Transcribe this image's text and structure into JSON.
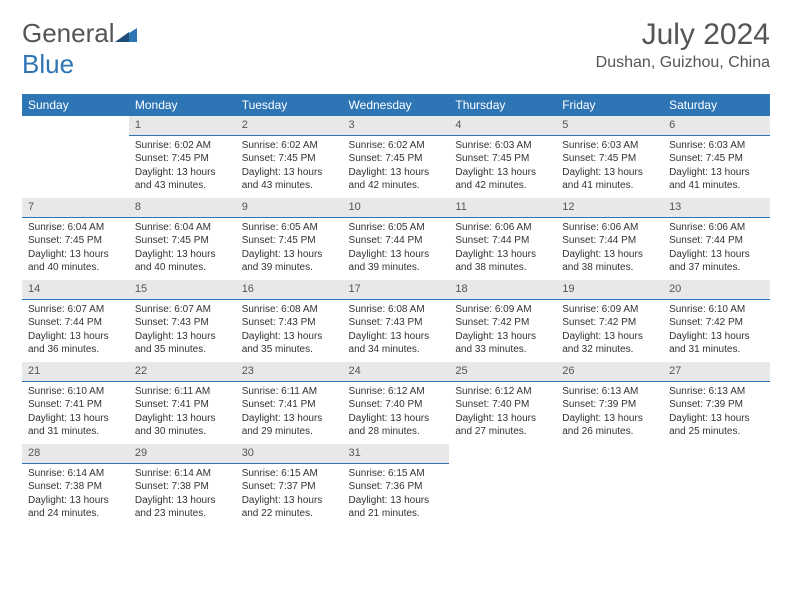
{
  "brand": {
    "part1": "General",
    "part2": "Blue"
  },
  "title": "July 2024",
  "location": "Dushan, Guizhou, China",
  "colors": {
    "header_bg": "#2e75b6",
    "header_text": "#ffffff",
    "daynum_bg": "#e8e8e8",
    "daynum_border": "#2e75b6",
    "text": "#333333",
    "brand_gray": "#555555",
    "brand_blue": "#2e75b6"
  },
  "weekdays": [
    "Sunday",
    "Monday",
    "Tuesday",
    "Wednesday",
    "Thursday",
    "Friday",
    "Saturday"
  ],
  "weeks": [
    [
      {
        "n": "",
        "s": "",
        "t": "",
        "d": ""
      },
      {
        "n": "1",
        "s": "Sunrise: 6:02 AM",
        "t": "Sunset: 7:45 PM",
        "d": "Daylight: 13 hours and 43 minutes."
      },
      {
        "n": "2",
        "s": "Sunrise: 6:02 AM",
        "t": "Sunset: 7:45 PM",
        "d": "Daylight: 13 hours and 43 minutes."
      },
      {
        "n": "3",
        "s": "Sunrise: 6:02 AM",
        "t": "Sunset: 7:45 PM",
        "d": "Daylight: 13 hours and 42 minutes."
      },
      {
        "n": "4",
        "s": "Sunrise: 6:03 AM",
        "t": "Sunset: 7:45 PM",
        "d": "Daylight: 13 hours and 42 minutes."
      },
      {
        "n": "5",
        "s": "Sunrise: 6:03 AM",
        "t": "Sunset: 7:45 PM",
        "d": "Daylight: 13 hours and 41 minutes."
      },
      {
        "n": "6",
        "s": "Sunrise: 6:03 AM",
        "t": "Sunset: 7:45 PM",
        "d": "Daylight: 13 hours and 41 minutes."
      }
    ],
    [
      {
        "n": "7",
        "s": "Sunrise: 6:04 AM",
        "t": "Sunset: 7:45 PM",
        "d": "Daylight: 13 hours and 40 minutes."
      },
      {
        "n": "8",
        "s": "Sunrise: 6:04 AM",
        "t": "Sunset: 7:45 PM",
        "d": "Daylight: 13 hours and 40 minutes."
      },
      {
        "n": "9",
        "s": "Sunrise: 6:05 AM",
        "t": "Sunset: 7:45 PM",
        "d": "Daylight: 13 hours and 39 minutes."
      },
      {
        "n": "10",
        "s": "Sunrise: 6:05 AM",
        "t": "Sunset: 7:44 PM",
        "d": "Daylight: 13 hours and 39 minutes."
      },
      {
        "n": "11",
        "s": "Sunrise: 6:06 AM",
        "t": "Sunset: 7:44 PM",
        "d": "Daylight: 13 hours and 38 minutes."
      },
      {
        "n": "12",
        "s": "Sunrise: 6:06 AM",
        "t": "Sunset: 7:44 PM",
        "d": "Daylight: 13 hours and 38 minutes."
      },
      {
        "n": "13",
        "s": "Sunrise: 6:06 AM",
        "t": "Sunset: 7:44 PM",
        "d": "Daylight: 13 hours and 37 minutes."
      }
    ],
    [
      {
        "n": "14",
        "s": "Sunrise: 6:07 AM",
        "t": "Sunset: 7:44 PM",
        "d": "Daylight: 13 hours and 36 minutes."
      },
      {
        "n": "15",
        "s": "Sunrise: 6:07 AM",
        "t": "Sunset: 7:43 PM",
        "d": "Daylight: 13 hours and 35 minutes."
      },
      {
        "n": "16",
        "s": "Sunrise: 6:08 AM",
        "t": "Sunset: 7:43 PM",
        "d": "Daylight: 13 hours and 35 minutes."
      },
      {
        "n": "17",
        "s": "Sunrise: 6:08 AM",
        "t": "Sunset: 7:43 PM",
        "d": "Daylight: 13 hours and 34 minutes."
      },
      {
        "n": "18",
        "s": "Sunrise: 6:09 AM",
        "t": "Sunset: 7:42 PM",
        "d": "Daylight: 13 hours and 33 minutes."
      },
      {
        "n": "19",
        "s": "Sunrise: 6:09 AM",
        "t": "Sunset: 7:42 PM",
        "d": "Daylight: 13 hours and 32 minutes."
      },
      {
        "n": "20",
        "s": "Sunrise: 6:10 AM",
        "t": "Sunset: 7:42 PM",
        "d": "Daylight: 13 hours and 31 minutes."
      }
    ],
    [
      {
        "n": "21",
        "s": "Sunrise: 6:10 AM",
        "t": "Sunset: 7:41 PM",
        "d": "Daylight: 13 hours and 31 minutes."
      },
      {
        "n": "22",
        "s": "Sunrise: 6:11 AM",
        "t": "Sunset: 7:41 PM",
        "d": "Daylight: 13 hours and 30 minutes."
      },
      {
        "n": "23",
        "s": "Sunrise: 6:11 AM",
        "t": "Sunset: 7:41 PM",
        "d": "Daylight: 13 hours and 29 minutes."
      },
      {
        "n": "24",
        "s": "Sunrise: 6:12 AM",
        "t": "Sunset: 7:40 PM",
        "d": "Daylight: 13 hours and 28 minutes."
      },
      {
        "n": "25",
        "s": "Sunrise: 6:12 AM",
        "t": "Sunset: 7:40 PM",
        "d": "Daylight: 13 hours and 27 minutes."
      },
      {
        "n": "26",
        "s": "Sunrise: 6:13 AM",
        "t": "Sunset: 7:39 PM",
        "d": "Daylight: 13 hours and 26 minutes."
      },
      {
        "n": "27",
        "s": "Sunrise: 6:13 AM",
        "t": "Sunset: 7:39 PM",
        "d": "Daylight: 13 hours and 25 minutes."
      }
    ],
    [
      {
        "n": "28",
        "s": "Sunrise: 6:14 AM",
        "t": "Sunset: 7:38 PM",
        "d": "Daylight: 13 hours and 24 minutes."
      },
      {
        "n": "29",
        "s": "Sunrise: 6:14 AM",
        "t": "Sunset: 7:38 PM",
        "d": "Daylight: 13 hours and 23 minutes."
      },
      {
        "n": "30",
        "s": "Sunrise: 6:15 AM",
        "t": "Sunset: 7:37 PM",
        "d": "Daylight: 13 hours and 22 minutes."
      },
      {
        "n": "31",
        "s": "Sunrise: 6:15 AM",
        "t": "Sunset: 7:36 PM",
        "d": "Daylight: 13 hours and 21 minutes."
      },
      {
        "n": "",
        "s": "",
        "t": "",
        "d": ""
      },
      {
        "n": "",
        "s": "",
        "t": "",
        "d": ""
      },
      {
        "n": "",
        "s": "",
        "t": "",
        "d": ""
      }
    ]
  ]
}
